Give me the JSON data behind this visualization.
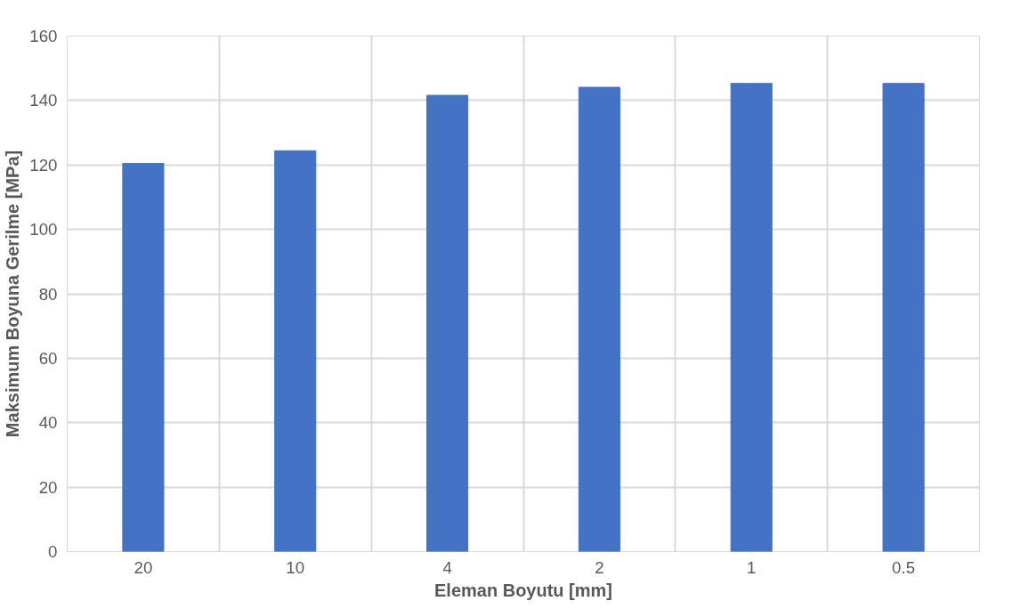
{
  "chart_data": {
    "type": "bar",
    "xlabel": "Eleman Boyutu [mm]",
    "ylabel": "Maksimum Boyuna Gerilme [MPa]",
    "categories": [
      "20",
      "10",
      "4",
      "2",
      "1",
      "0.5"
    ],
    "values": [
      120.5,
      124.4,
      141.6,
      144.1,
      145.3,
      145.3
    ],
    "color": "#4472c4",
    "ylim": [
      0,
      160
    ],
    "yticks": [
      0,
      20,
      40,
      60,
      80,
      100,
      120,
      140,
      160
    ],
    "grid": true
  }
}
